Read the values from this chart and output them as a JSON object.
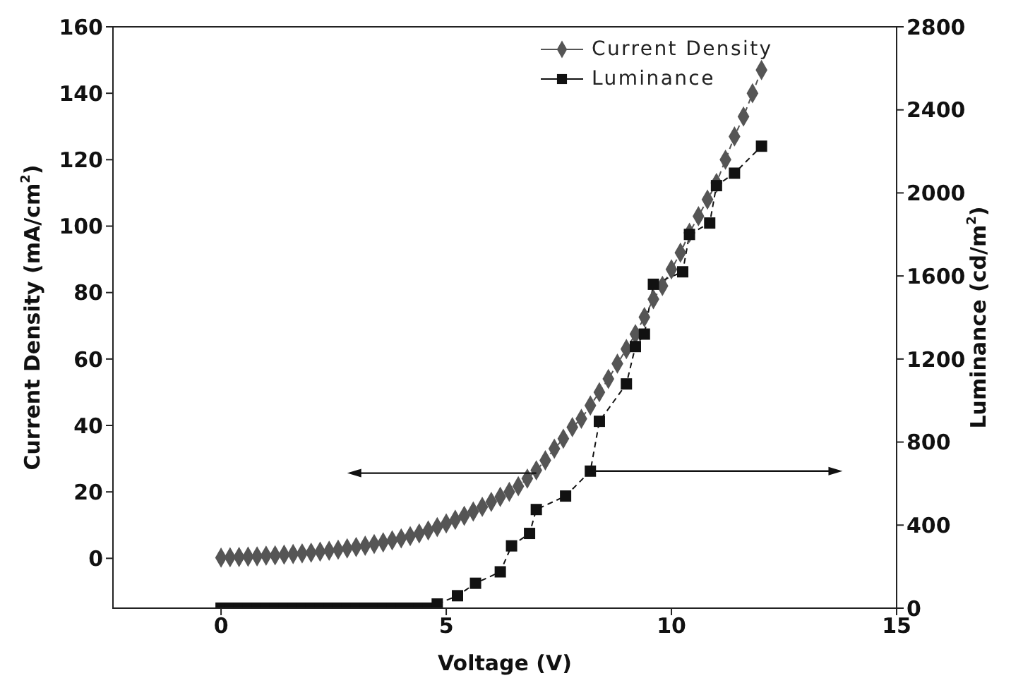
{
  "chart_data": {
    "type": "line",
    "xlabel": "Voltage (V)",
    "ylabel": "Current Density (mA/cm$^{2}$)",
    "y2label": "Luminance (cd/m$^{2}$)",
    "xlim": [
      -2.4,
      15
    ],
    "xticks": [
      0,
      5,
      10,
      15
    ],
    "ylim": [
      -15,
      160
    ],
    "yticks": [
      0,
      20,
      40,
      60,
      80,
      100,
      120,
      140,
      160
    ],
    "y2lim": [
      0,
      2800
    ],
    "y2ticks": [
      0,
      400,
      800,
      1200,
      1600,
      2000,
      2400,
      2800
    ],
    "legend": "top right",
    "grid": false,
    "line_style": "dashed",
    "series": [
      {
        "name": "Current Density",
        "color": "#555555",
        "marker": "diamond",
        "x": [
          0,
          0.2,
          0.4,
          0.6,
          0.8,
          1.0,
          1.2,
          1.4,
          1.6,
          1.8,
          2.0,
          2.2,
          2.4,
          2.6,
          2.8,
          3.0,
          3.2,
          3.4,
          3.6,
          3.8,
          4.0,
          4.2,
          4.4,
          4.6,
          4.8,
          5.0,
          5.2,
          5.4,
          5.6,
          5.8,
          6.0,
          6.2,
          6.4,
          6.6,
          6.8,
          7.0,
          7.2,
          7.4,
          7.6,
          7.8,
          8.0,
          8.2,
          8.4,
          8.6,
          8.8,
          9.0,
          9.2,
          9.4,
          9.6,
          9.8,
          10.0,
          10.2,
          10.4,
          10.6,
          10.8,
          11.0,
          11.2,
          11.4,
          11.6,
          11.8,
          12.0
        ],
        "values": [
          0.2,
          0.3,
          0.4,
          0.5,
          0.6,
          0.8,
          0.9,
          1.1,
          1.3,
          1.5,
          1.7,
          2.0,
          2.3,
          2.6,
          3.0,
          3.4,
          3.8,
          4.3,
          4.8,
          5.4,
          6.0,
          6.7,
          7.5,
          8.4,
          9.4,
          10.5,
          11.6,
          12.8,
          14.1,
          15.5,
          17,
          18.5,
          20,
          21.7,
          24,
          26.5,
          29.5,
          33,
          36,
          39.5,
          42,
          46,
          50,
          54,
          58.6,
          63,
          67.5,
          72.6,
          78,
          82,
          87,
          92,
          98,
          103,
          108,
          113,
          120,
          127,
          133,
          140,
          147
        ]
      },
      {
        "name": "Luminance",
        "color": "#111111",
        "marker": "square",
        "axis": "y2",
        "x": [
          0,
          0.2,
          0.4,
          0.6,
          0.8,
          1.0,
          1.2,
          1.4,
          1.6,
          1.8,
          2.0,
          2.2,
          2.4,
          2.6,
          2.8,
          3.0,
          3.2,
          3.4,
          3.6,
          3.8,
          4.0,
          4.2,
          4.4,
          4.6,
          4.8,
          5.25,
          5.65,
          6.2,
          6.45,
          6.85,
          7.0,
          7.65,
          8.2,
          8.4,
          9.0,
          9.2,
          9.4,
          9.6,
          10.25,
          10.4,
          10.85,
          11.0,
          11.4,
          12.0
        ],
        "values": [
          0,
          0,
          0,
          0,
          0,
          0,
          0,
          0,
          0,
          0,
          0,
          0,
          0,
          0,
          0,
          0,
          0,
          0,
          0,
          0,
          0,
          0,
          0,
          0,
          20,
          60,
          120,
          175,
          300,
          360,
          475,
          540,
          660,
          900,
          1080,
          1260,
          1320,
          1560,
          1620,
          1800,
          1855,
          2035,
          2095,
          2225
        ]
      }
    ]
  }
}
